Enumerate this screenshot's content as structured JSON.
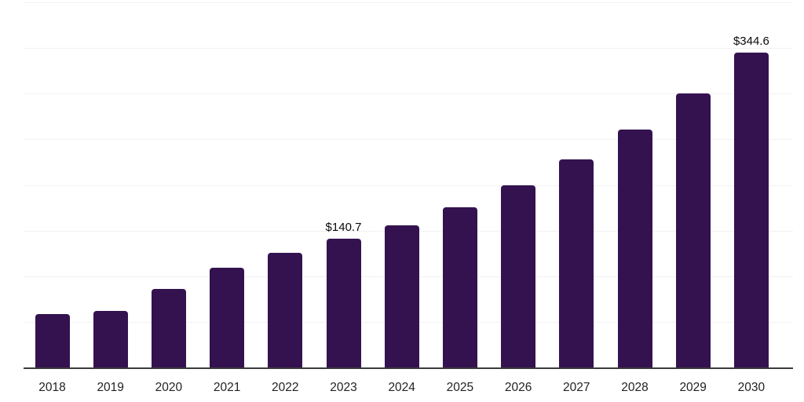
{
  "chart_data": {
    "type": "bar",
    "title": "",
    "xlabel": "",
    "ylabel": "",
    "categories": [
      "2018",
      "2019",
      "2020",
      "2021",
      "2022",
      "2023",
      "2024",
      "2025",
      "2026",
      "2027",
      "2028",
      "2029",
      "2030"
    ],
    "values": [
      58.5,
      62.0,
      86.0,
      109.0,
      125.5,
      140.7,
      155.5,
      175.5,
      199.5,
      228.0,
      260.5,
      300.0,
      344.6
    ],
    "data_labels": [
      {
        "index": 5,
        "text": "$140.7"
      },
      {
        "index": 12,
        "text": "$344.6"
      }
    ],
    "ylim": [
      0,
      400
    ],
    "gridline_step": 50,
    "grid": true,
    "legend": false,
    "y_tick_labels_visible": false,
    "colors": {
      "bar": "#341250",
      "axis_line": "#3B3B3B",
      "gridline": "#F2F2F2",
      "tick_label": "#222222",
      "value_label": "#0A0A0A",
      "background": "#FFFFFF"
    }
  }
}
